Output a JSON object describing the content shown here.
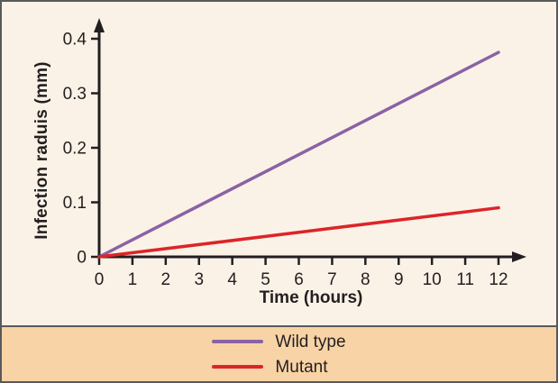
{
  "chart_data": {
    "type": "line",
    "title": "",
    "xlabel": "Time (hours)",
    "ylabel": "Infection raduis (mm)",
    "x_ticks": [
      0,
      1,
      2,
      3,
      4,
      5,
      6,
      7,
      8,
      9,
      10,
      11,
      12
    ],
    "x_tick_labels": [
      "0",
      "1",
      "2",
      "3",
      "4",
      "5",
      "6",
      "7",
      "8",
      "9",
      "10",
      "11",
      "12"
    ],
    "y_ticks": [
      0,
      0.1,
      0.2,
      0.3,
      0.4
    ],
    "y_tick_labels": [
      "0",
      "0.1",
      "0.2",
      "0.3",
      "0.4"
    ],
    "xlim": [
      0,
      12
    ],
    "ylim": [
      0,
      0.4
    ],
    "grid": false,
    "legend_position": "bottom-band",
    "series": [
      {
        "name": "Wild type",
        "color": "#8a62a5",
        "x": [
          0,
          12
        ],
        "y": [
          0,
          0.375
        ]
      },
      {
        "name": "Mutant",
        "color": "#dd2428",
        "x": [
          0,
          12
        ],
        "y": [
          0,
          0.09
        ]
      }
    ]
  },
  "colors": {
    "chart_background": "#fbf2e7",
    "legend_background": "#f8d3a5",
    "frame_border": "#58595a",
    "axis_and_text": "#231f20",
    "wild_type_line": "#8a62a5",
    "mutant_line": "#dd2428"
  }
}
